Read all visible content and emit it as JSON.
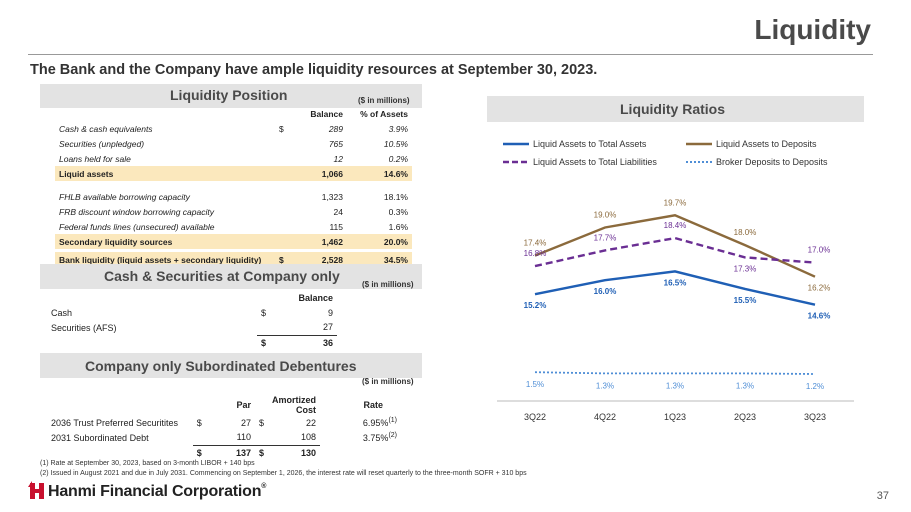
{
  "title": "Liquidity",
  "subtitle": "The Bank and the Company have ample liquidity resources at September 30, 2023.",
  "liquidity_position": {
    "title": "Liquidity Position",
    "units": "($ in millions)",
    "headers": [
      "Balance",
      "% of Assets"
    ],
    "rows": [
      {
        "label": "Cash & cash equivalents",
        "dollar": "$",
        "balance": "289",
        "pct": "3.9%"
      },
      {
        "label": "Securities (unpledged)",
        "dollar": "",
        "balance": "765",
        "pct": "10.5%"
      },
      {
        "label": "Loans held for sale",
        "dollar": "",
        "balance": "12",
        "pct": "0.2%"
      },
      {
        "label": "Liquid assets",
        "dollar": "",
        "balance": "1,066",
        "pct": "14.6%"
      },
      {
        "label": "FHLB available borrowing capacity",
        "dollar": "",
        "balance": "1,323",
        "pct": "18.1%"
      },
      {
        "label": "FRB discount window borrowing capacity",
        "dollar": "",
        "balance": "24",
        "pct": "0.3%"
      },
      {
        "label": "Federal funds lines (unsecured) available",
        "dollar": "",
        "balance": "115",
        "pct": "1.6%"
      },
      {
        "label": "Secondary liquidity sources",
        "dollar": "",
        "balance": "1,462",
        "pct": "20.0%"
      },
      {
        "label": "Bank liquidity (liquid assets + secondary liquidity)",
        "dollar": "$",
        "balance": "2,528",
        "pct": "34.5%"
      }
    ]
  },
  "cash_securities": {
    "title": "Cash & Securities at Company only",
    "units": "($ in millions)",
    "header": "Balance",
    "rows": [
      {
        "label": "Cash",
        "dollar": "$",
        "value": "9"
      },
      {
        "label": "Securities (AFS)",
        "dollar": "",
        "value": "27"
      }
    ],
    "total": {
      "dollar": "$",
      "value": "36"
    }
  },
  "sub_debentures": {
    "title": "Company only Subordinated Debentures",
    "units": "($ in millions)",
    "headers": [
      "Par",
      "Amortized Cost",
      "Rate"
    ],
    "rows": [
      {
        "label": "2036 Trust Preferred Securitites",
        "par_dollar": "$",
        "par": "27",
        "cost_dollar": "$",
        "cost": "22",
        "rate": "6.95%",
        "note": "(1)"
      },
      {
        "label": "2031 Subordinated Debt",
        "par_dollar": "",
        "par": "110",
        "cost_dollar": "",
        "cost": "108",
        "rate": "3.75%",
        "note": "(2)"
      }
    ],
    "total": {
      "par_dollar": "$",
      "par": "137",
      "cost_dollar": "$",
      "cost": "130"
    }
  },
  "footnotes": [
    "(1)    Rate at September 30, 2023, based on 3-month LIBOR + 140 bps",
    "(2)    Issued in August 2021 and due in July 2031. Commencing on September 1, 2026, the interest rate will reset quarterly to the three-month SOFR + 310 bps"
  ],
  "ratios": {
    "title": "Liquidity Ratios"
  },
  "chart_data": {
    "type": "line",
    "title": "Liquidity Ratios",
    "categories": [
      "3Q22",
      "4Q22",
      "1Q23",
      "2Q23",
      "3Q23"
    ],
    "series": [
      {
        "name": "Liquid Assets to Total Assets",
        "values": [
          15.2,
          16.0,
          16.5,
          15.5,
          14.6
        ],
        "labels": [
          "15.2%",
          "16.0%",
          "16.5%",
          "15.5%",
          "14.6%"
        ],
        "color": "#1f5fb5",
        "dash": "solid"
      },
      {
        "name": "Liquid Assets to Deposits",
        "values": [
          17.4,
          19.0,
          19.7,
          18.0,
          16.2
        ],
        "labels": [
          "17.4%",
          "19.0%",
          "19.7%",
          "18.0%",
          "16.2%"
        ],
        "color": "#8b6a3c",
        "dash": "solid"
      },
      {
        "name": "Liquid Assets to Total Liabilities",
        "values": [
          16.8,
          17.7,
          18.4,
          17.3,
          17.0
        ],
        "labels": [
          "16.8%",
          "17.7%",
          "18.4%",
          "17.3%",
          "17.0%"
        ],
        "color": "#6a2e93",
        "dash": "dashed"
      },
      {
        "name": "Broker Deposits to Deposits",
        "values": [
          1.5,
          1.3,
          1.3,
          1.3,
          1.2
        ],
        "labels": [
          "1.5%",
          "1.3%",
          "1.3%",
          "1.3%",
          "1.2%"
        ],
        "color": "#4f8ed6",
        "dash": "dotted"
      }
    ],
    "ylabel": "",
    "xlabel": ""
  },
  "brand": {
    "name": "Hanmi Financial Corporation",
    "trademark": "®",
    "color": "#c8102e"
  },
  "page_number": "37"
}
